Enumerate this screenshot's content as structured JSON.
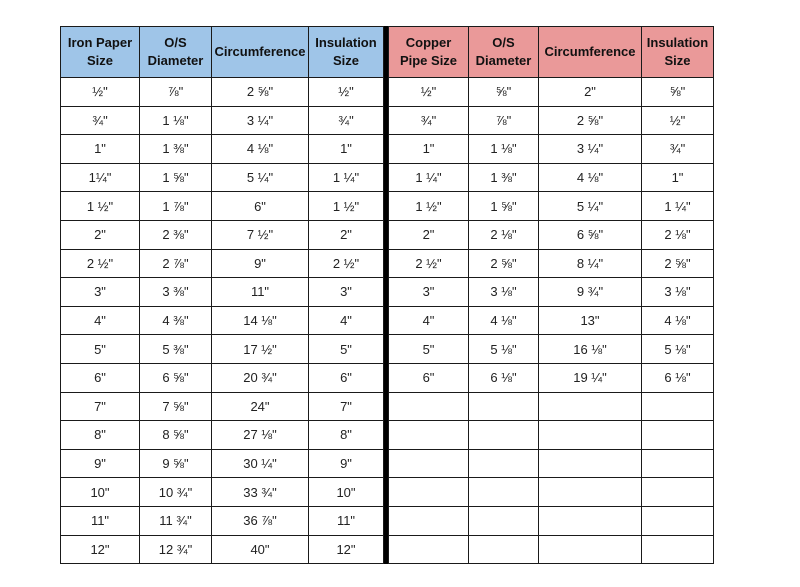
{
  "colors": {
    "iron_header_bg": "#9fc5e8",
    "copper_header_bg": "#ea9999",
    "divider": "#000000",
    "border": "#1a1a1a"
  },
  "iron_table": {
    "headers": [
      "Iron Paper Size",
      "O/S Diameter",
      "Circumference",
      "Insulation Size"
    ],
    "rows": [
      [
        "½\"",
        "⅞\"",
        "2 ⅝\"",
        "½\""
      ],
      [
        "¾\"",
        "1 ⅛\"",
        "3 ¼\"",
        "¾\""
      ],
      [
        "1\"",
        "1 ⅜\"",
        "4 ⅛\"",
        "1\""
      ],
      [
        "1¼\"",
        "1 ⅝\"",
        "5 ¼\"",
        "1 ¼\""
      ],
      [
        "1 ½\"",
        "1 ⅞\"",
        "6\"",
        "1 ½\""
      ],
      [
        "2\"",
        "2 ⅜\"",
        "7 ½\"",
        "2\""
      ],
      [
        "2 ½\"",
        "2 ⅞\"",
        "9\"",
        "2 ½\""
      ],
      [
        "3\"",
        "3 ⅜\"",
        "11\"",
        "3\""
      ],
      [
        "4\"",
        "4 ⅜\"",
        "14 ⅛\"",
        "4\""
      ],
      [
        "5\"",
        "5 ⅜\"",
        "17 ½\"",
        "5\""
      ],
      [
        "6\"",
        "6 ⅝\"",
        "20 ¾\"",
        "6\""
      ],
      [
        "7\"",
        "7 ⅝\"",
        "24\"",
        "7\""
      ],
      [
        "8\"",
        "8 ⅝\"",
        "27 ⅛\"",
        "8\""
      ],
      [
        "9\"",
        "9 ⅝\"",
        "30 ¼\"",
        "9\""
      ],
      [
        "10\"",
        "10 ¾\"",
        "33 ¾\"",
        "10\""
      ],
      [
        "11\"",
        "11 ¾\"",
        "36 ⅞\"",
        "11\""
      ],
      [
        "12\"",
        "12 ¾\"",
        "40\"",
        "12\""
      ]
    ]
  },
  "copper_table": {
    "headers": [
      "Copper Pipe Size",
      "O/S Diameter",
      "Circumference",
      "Insulation Size"
    ],
    "rows": [
      [
        "½\"",
        "⅝\"",
        "2\"",
        "⅝\""
      ],
      [
        "¾\"",
        "⅞\"",
        "2 ⅝\"",
        "½\""
      ],
      [
        "1\"",
        "1 ⅛\"",
        "3 ¼\"",
        "¾\""
      ],
      [
        "1 ¼\"",
        "1 ⅜\"",
        "4 ⅛\"",
        "1\""
      ],
      [
        "1 ½\"",
        "1 ⅝\"",
        "5 ¼\"",
        "1 ¼\""
      ],
      [
        "2\"",
        "2 ⅛\"",
        "6 ⅝\"",
        "2 ⅛\""
      ],
      [
        "2 ½\"",
        "2 ⅝\"",
        "8 ¼\"",
        "2 ⅝\""
      ],
      [
        "3\"",
        "3 ⅛\"",
        "9 ¾\"",
        "3 ⅛\""
      ],
      [
        "4\"",
        "4 ⅛\"",
        "13\"",
        "4 ⅛\""
      ],
      [
        "5\"",
        "5 ⅛\"",
        "16 ⅛\"",
        "5 ⅛\""
      ],
      [
        "6\"",
        "6 ⅛\"",
        "19 ¼\"",
        "6 ⅛\""
      ],
      [
        "",
        "",
        "",
        ""
      ],
      [
        "",
        "",
        "",
        ""
      ],
      [
        "",
        "",
        "",
        ""
      ],
      [
        "",
        "",
        "",
        ""
      ],
      [
        "",
        "",
        "",
        ""
      ],
      [
        "",
        "",
        "",
        ""
      ]
    ]
  }
}
